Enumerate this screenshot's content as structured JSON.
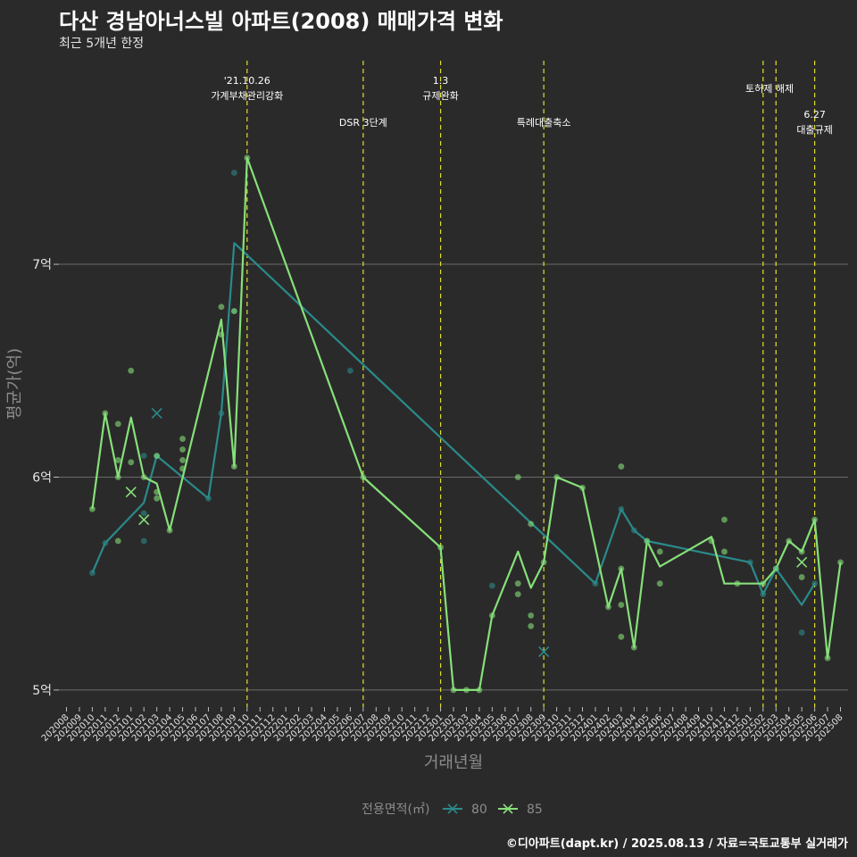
{
  "title": "다산 경남아너스빌 아파트(2008) 매매가격 변화",
  "subtitle": "최근 5개년 한정",
  "caption": "©디아파트(dapt.kr) / 2025.08.13 / 자료=국토교통부 실거래가",
  "colors": {
    "background": "#2b2a2a",
    "series80": "#2a8a8a",
    "series85": "#86e07a",
    "vline": "#e0e030",
    "grid": "#6a6a6a"
  },
  "chart_data": {
    "type": "line",
    "xlabel": "거래년월",
    "ylabel": "평균가(억)",
    "ylim": [
      4.92,
      7.99
    ],
    "yticks": [
      {
        "value": 5,
        "label": "5억"
      },
      {
        "value": 6,
        "label": "6억"
      },
      {
        "value": 7,
        "label": "7억"
      }
    ],
    "categories": [
      "202008",
      "202009",
      "202010",
      "202011",
      "202012",
      "202101",
      "202102",
      "202103",
      "202104",
      "202105",
      "202106",
      "202107",
      "202108",
      "202109",
      "202110",
      "202111",
      "202112",
      "202201",
      "202202",
      "202203",
      "202204",
      "202205",
      "202206",
      "202207",
      "202208",
      "202209",
      "202210",
      "202211",
      "202212",
      "202301",
      "202302",
      "202303",
      "202304",
      "202305",
      "202306",
      "202307",
      "202308",
      "202309",
      "202310",
      "202311",
      "202312",
      "202401",
      "202402",
      "202403",
      "202404",
      "202405",
      "202406",
      "202407",
      "202408",
      "202409",
      "202410",
      "202411",
      "202412",
      "202501",
      "202502",
      "202503",
      "202504",
      "202505",
      "202506",
      "202507",
      "202508"
    ],
    "legend": {
      "title": "전용면적(㎡)",
      "position": "bottom"
    },
    "series": [
      {
        "name": "80",
        "color": "#2a8a8a",
        "line": [
          [
            "202010",
            5.55
          ],
          [
            "202011",
            5.69
          ],
          [
            "202102",
            5.88
          ],
          [
            "202103",
            6.1
          ],
          [
            "202107",
            5.9
          ],
          [
            "202108",
            6.3
          ],
          [
            "202109",
            7.1
          ],
          [
            "202401",
            5.5
          ],
          [
            "202403",
            5.85
          ],
          [
            "202404",
            5.75
          ],
          [
            "202405",
            5.7
          ],
          [
            "202501",
            5.6
          ],
          [
            "202502",
            5.45
          ],
          [
            "202503",
            5.57
          ],
          [
            "202505",
            5.4
          ],
          [
            "202506",
            5.5
          ]
        ],
        "points": [
          [
            "202010",
            5.55
          ],
          [
            "202011",
            5.69
          ],
          [
            "202102",
            5.83
          ],
          [
            "202102",
            6.1
          ],
          [
            "202102",
            5.7
          ],
          [
            "202103",
            6.1
          ],
          [
            "202107",
            5.9
          ],
          [
            "202108",
            6.3
          ],
          [
            "202109",
            7.43
          ],
          [
            "202109",
            6.78
          ],
          [
            "202206",
            6.5
          ],
          [
            "202305",
            5.49
          ],
          [
            "202401",
            5.5
          ],
          [
            "202403",
            5.85
          ],
          [
            "202404",
            5.75
          ],
          [
            "202405",
            5.7
          ],
          [
            "202501",
            5.6
          ],
          [
            "202502",
            5.45
          ],
          [
            "202503",
            5.57
          ],
          [
            "202505",
            5.27
          ],
          [
            "202506",
            5.5
          ]
        ],
        "x_marks": [
          [
            "202103",
            6.3
          ],
          [
            "202309",
            5.18
          ]
        ]
      },
      {
        "name": "85",
        "color": "#86e07a",
        "line": [
          [
            "202010",
            5.85
          ],
          [
            "202011",
            6.3
          ],
          [
            "202012",
            6.0
          ],
          [
            "202101",
            6.28
          ],
          [
            "202102",
            6.0
          ],
          [
            "202103",
            5.97
          ],
          [
            "202104",
            5.75
          ],
          [
            "202108",
            6.74
          ],
          [
            "202109",
            6.05
          ],
          [
            "202110",
            7.5
          ],
          [
            "202207",
            6.0
          ],
          [
            "202301",
            5.67
          ],
          [
            "202302",
            5.0
          ],
          [
            "202303",
            5.0
          ],
          [
            "202304",
            5.0
          ],
          [
            "202305",
            5.35
          ],
          [
            "202307",
            5.65
          ],
          [
            "202308",
            5.48
          ],
          [
            "202309",
            5.6
          ],
          [
            "202310",
            6.0
          ],
          [
            "202312",
            5.95
          ],
          [
            "202402",
            5.39
          ],
          [
            "202403",
            5.57
          ],
          [
            "202404",
            5.2
          ],
          [
            "202405",
            5.7
          ],
          [
            "202406",
            5.58
          ],
          [
            "202410",
            5.72
          ],
          [
            "202411",
            5.5
          ],
          [
            "202501",
            5.5
          ],
          [
            "202502",
            5.5
          ],
          [
            "202503",
            5.57
          ],
          [
            "202504",
            5.7
          ],
          [
            "202505",
            5.65
          ],
          [
            "202506",
            5.8
          ],
          [
            "202507",
            5.15
          ],
          [
            "202508",
            5.6
          ]
        ],
        "points": [
          [
            "202010",
            5.85
          ],
          [
            "202011",
            6.3
          ],
          [
            "202012",
            6.25
          ],
          [
            "202012",
            6.08
          ],
          [
            "202012",
            6.0
          ],
          [
            "202012",
            5.7
          ],
          [
            "202101",
            6.5
          ],
          [
            "202101",
            6.07
          ],
          [
            "202102",
            6.0
          ],
          [
            "202103",
            6.1
          ],
          [
            "202103",
            5.93
          ],
          [
            "202103",
            5.9
          ],
          [
            "202104",
            5.75
          ],
          [
            "202105",
            6.18
          ],
          [
            "202105",
            6.13
          ],
          [
            "202105",
            6.08
          ],
          [
            "202105",
            6.04
          ],
          [
            "202108",
            6.8
          ],
          [
            "202108",
            6.67
          ],
          [
            "202109",
            6.78
          ],
          [
            "202109",
            6.05
          ],
          [
            "202110",
            7.5
          ],
          [
            "202207",
            6.0
          ],
          [
            "202301",
            5.67
          ],
          [
            "202302",
            5.0
          ],
          [
            "202303",
            5.0
          ],
          [
            "202304",
            5.0
          ],
          [
            "202305",
            5.35
          ],
          [
            "202307",
            6.0
          ],
          [
            "202307",
            5.5
          ],
          [
            "202307",
            5.45
          ],
          [
            "202308",
            5.78
          ],
          [
            "202308",
            5.35
          ],
          [
            "202308",
            5.3
          ],
          [
            "202309",
            5.6
          ],
          [
            "202310",
            6.0
          ],
          [
            "202312",
            5.95
          ],
          [
            "202402",
            5.39
          ],
          [
            "202403",
            6.05
          ],
          [
            "202403",
            5.57
          ],
          [
            "202403",
            5.4
          ],
          [
            "202403",
            5.25
          ],
          [
            "202404",
            5.2
          ],
          [
            "202405",
            5.7
          ],
          [
            "202406",
            5.65
          ],
          [
            "202406",
            5.5
          ],
          [
            "202410",
            5.7
          ],
          [
            "202411",
            5.8
          ],
          [
            "202411",
            5.65
          ],
          [
            "202412",
            5.5
          ],
          [
            "202502",
            5.5
          ],
          [
            "202503",
            5.57
          ],
          [
            "202504",
            5.7
          ],
          [
            "202505",
            5.65
          ],
          [
            "202505",
            5.53
          ],
          [
            "202506",
            5.8
          ],
          [
            "202507",
            5.15
          ],
          [
            "202508",
            5.6
          ]
        ],
        "x_marks": [
          [
            "202101",
            5.93
          ],
          [
            "202102",
            5.8
          ],
          [
            "202505",
            5.6
          ]
        ]
      }
    ],
    "events": [
      {
        "x": "202110",
        "lines": [
          "'21.10.26",
          "가계부채관리강화"
        ],
        "level": "top"
      },
      {
        "x": "202207",
        "lines": [
          "DSR 3단계"
        ],
        "level": "mid"
      },
      {
        "x": "202301",
        "lines": [
          "1.3",
          "규제완화"
        ],
        "level": "top"
      },
      {
        "x": "202309",
        "lines": [
          "특례대출축소"
        ],
        "level": "mid"
      },
      {
        "x": "202502",
        "lines": [
          "토허제 해제"
        ],
        "level": "high",
        "label_offset": 0.5
      },
      {
        "x": "202503",
        "lines": [],
        "level": "none"
      },
      {
        "x": "202506",
        "lines": [
          "6.27",
          "대출규제"
        ],
        "level": "low"
      }
    ]
  }
}
